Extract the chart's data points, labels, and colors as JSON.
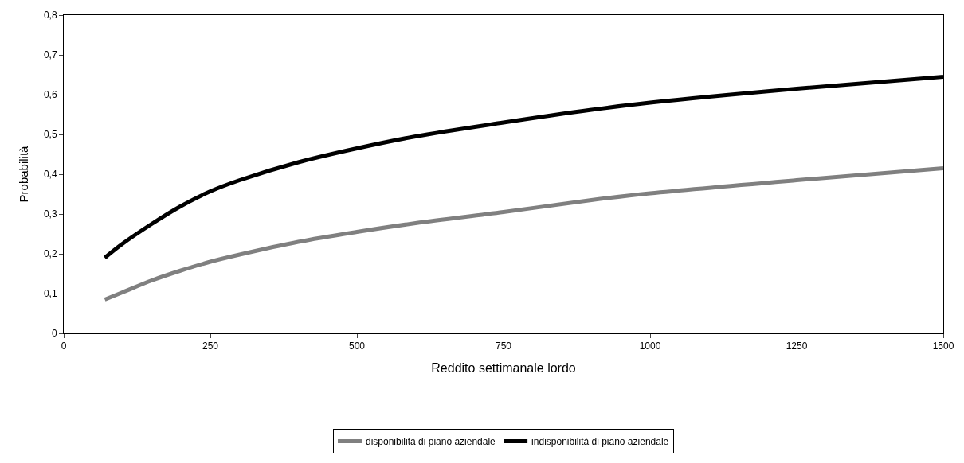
{
  "chart_data": {
    "type": "line",
    "xlabel": "Reddito settimanale lordo",
    "ylabel": "Probabilità",
    "xlim": [
      0,
      1500
    ],
    "xticks": [
      0,
      250,
      500,
      750,
      1000,
      1250,
      1500
    ],
    "ylim": [
      0,
      0.8
    ],
    "yticks": [
      0,
      {
        "value": 0.1,
        "label": "0,1"
      },
      {
        "value": 0.2,
        "label": "0,2"
      },
      {
        "value": 0.3,
        "label": "0,3"
      },
      {
        "value": 0.4,
        "label": "0,4"
      },
      {
        "value": 0.5,
        "label": "0,5"
      },
      {
        "value": 0.6,
        "label": "0,6"
      },
      {
        "value": 0.7,
        "label": "0,7"
      },
      {
        "value": 0.8,
        "label": "0,8"
      }
    ],
    "x": [
      70,
      100,
      150,
      200,
      250,
      300,
      400,
      500,
      600,
      750,
      900,
      1000,
      1250,
      1500
    ],
    "series": [
      {
        "name": "disponibilità di piano aziendale",
        "color": "#808080",
        "values": [
          0.085,
          0.103,
          0.133,
          0.158,
          0.18,
          0.198,
          0.23,
          0.255,
          0.277,
          0.305,
          0.335,
          0.352,
          0.385,
          0.415
        ]
      },
      {
        "name": "indisponibilità di piano aziendale",
        "color": "#000000",
        "values": [
          0.19,
          0.225,
          0.275,
          0.32,
          0.357,
          0.385,
          0.43,
          0.465,
          0.495,
          0.53,
          0.562,
          0.58,
          0.615,
          0.645
        ]
      }
    ],
    "legend": "bottom",
    "marker": "none",
    "line_style": "solid"
  }
}
